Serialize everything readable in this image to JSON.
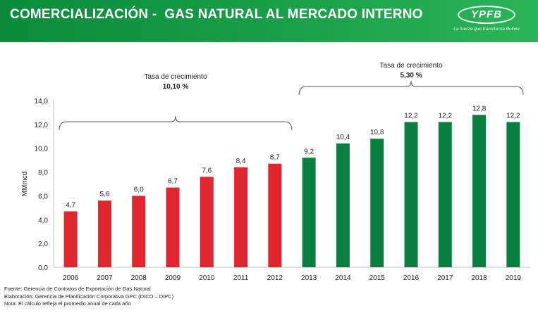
{
  "header": {
    "title": "COMERCIALIZACIÓN -  GAS NATURAL AL MERCADO INTERNO",
    "logo_text": "YPFB",
    "logo_tagline": "La fuerza que transforma Bolivia"
  },
  "colors": {
    "header_green": "#159a45",
    "bar_red": "#e0262e",
    "bar_green": "#0b8040"
  },
  "chart_data": {
    "type": "bar",
    "categories": [
      "2006",
      "2007",
      "2008",
      "2009",
      "2010",
      "2011",
      "2012",
      "2013",
      "2014",
      "2015",
      "2016",
      "2017",
      "2018",
      "2019"
    ],
    "values": [
      4.7,
      5.6,
      6.0,
      6.7,
      7.6,
      8.4,
      8.7,
      9.2,
      10.4,
      10.8,
      12.2,
      12.2,
      12.8,
      12.2
    ],
    "value_labels": [
      "4,7",
      "5,6",
      "6,0",
      "6,7",
      "7,6",
      "8,4",
      "8,7",
      "9,2",
      "10,4",
      "10,8",
      "12,2",
      "12,2",
      "12,8",
      "12,2"
    ],
    "bar_colors": [
      "#e0262e",
      "#e0262e",
      "#e0262e",
      "#e0262e",
      "#e0262e",
      "#e0262e",
      "#e0262e",
      "#0b8040",
      "#0b8040",
      "#0b8040",
      "#0b8040",
      "#0b8040",
      "#0b8040",
      "#0b8040"
    ],
    "ylabel": "MMmcd",
    "ylim": [
      0,
      14
    ],
    "yticks": [
      "0,0",
      "2,0",
      "4,0",
      "6,0",
      "8,0",
      "10,0",
      "12,0",
      "14,0"
    ],
    "grid": false,
    "annotations": [
      {
        "label": "Tasa de crecimiento",
        "value": "10,10 %",
        "from_index": 0,
        "to_index": 6
      },
      {
        "label": "Tasa de crecimiento",
        "value": "5,30 %",
        "from_index": 7,
        "to_index": 13
      }
    ]
  },
  "footer": {
    "source": "Fuente: Gerencia de Contratos de Exportación de Gas Natural",
    "elaboration": "Elaboración: Gerencia de Planificación Corporativa GPC (DICO – DIPC)",
    "note": "Nota: El cálculo refleja el promedio anual de cada año"
  }
}
